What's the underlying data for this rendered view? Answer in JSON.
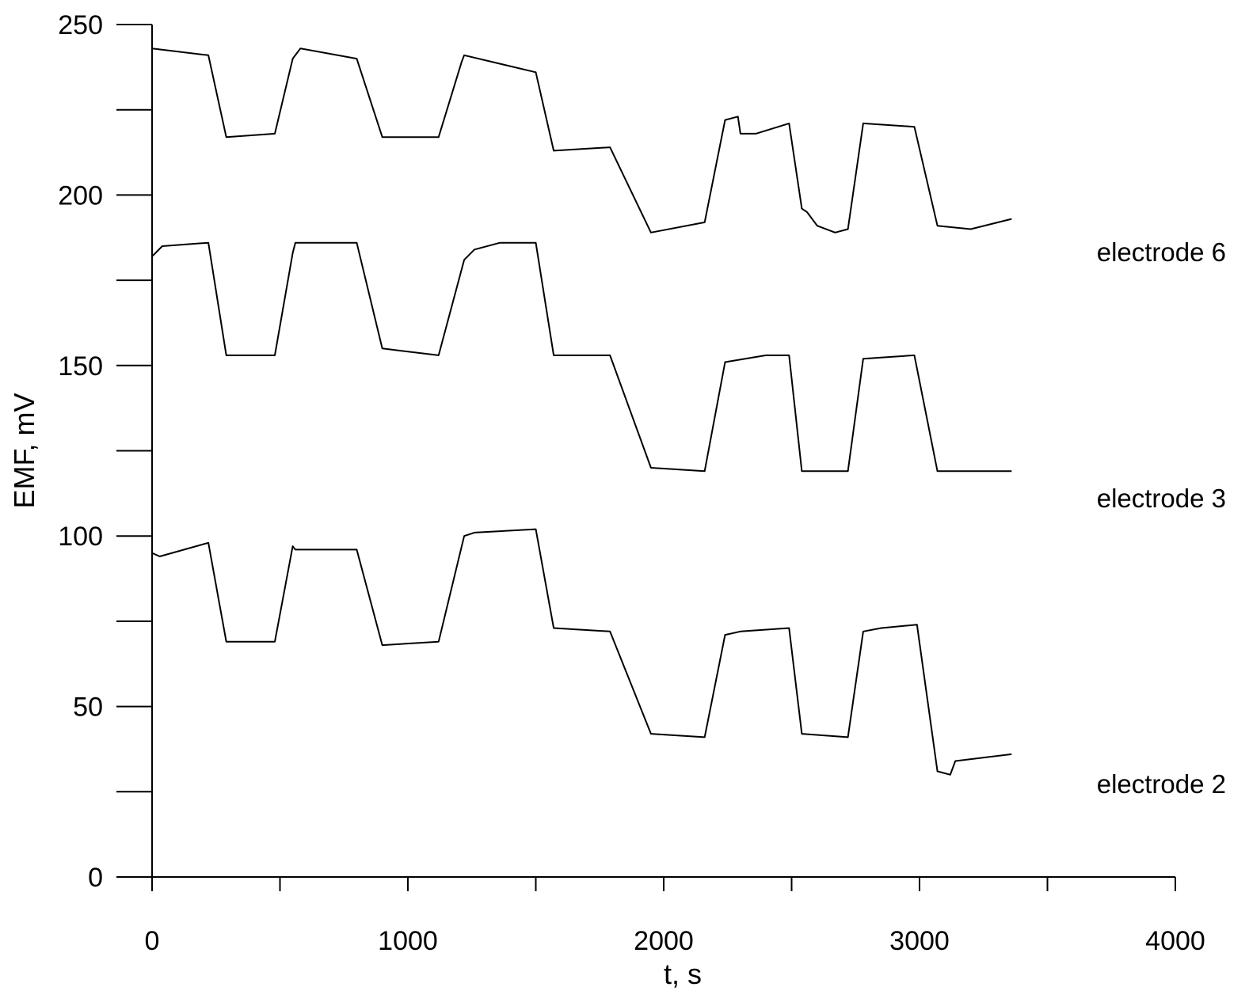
{
  "chart_data": {
    "type": "line",
    "title": "",
    "xlabel": "t, s",
    "ylabel": "EMF, mV",
    "xlim": [
      0,
      4000
    ],
    "ylim": [
      0,
      250
    ],
    "x_ticks_major": [
      0,
      1000,
      2000,
      3000,
      4000
    ],
    "x_ticks_minor": [
      500,
      1500,
      2500,
      3500
    ],
    "y_ticks_major": [
      0,
      50,
      100,
      150,
      200,
      250
    ],
    "y_ticks_minor": [
      25,
      75,
      125,
      175,
      225
    ],
    "x_tick_labels": [
      "0",
      "1000",
      "2000",
      "3000",
      "4000"
    ],
    "y_tick_labels": [
      "0",
      "50",
      "100",
      "150",
      "200",
      "250"
    ],
    "grid": false,
    "legend": "none",
    "series": [
      {
        "name": "electrode 6",
        "x": [
          0,
          220,
          290,
          480,
          550,
          580,
          800,
          900,
          1120,
          1210,
          1220,
          1500,
          1570,
          1790,
          1950,
          2160,
          2240,
          2290,
          2300,
          2360,
          2490,
          2540,
          2560,
          2600,
          2670,
          2720,
          2780,
          2980,
          3070,
          3200,
          3360
        ],
        "y": [
          243,
          241,
          217,
          218,
          240,
          243,
          240,
          217,
          217,
          239,
          241,
          236,
          213,
          214,
          189,
          192,
          222,
          223,
          218,
          218,
          221,
          196,
          195,
          191,
          189,
          190,
          221,
          220,
          191,
          190,
          193
        ]
      },
      {
        "name": "electrode 3",
        "x": [
          0,
          40,
          220,
          290,
          480,
          550,
          560,
          800,
          900,
          1120,
          1220,
          1260,
          1360,
          1500,
          1570,
          1790,
          1950,
          2160,
          2240,
          2400,
          2490,
          2540,
          2720,
          2780,
          2980,
          3070,
          3360
        ],
        "y": [
          182,
          185,
          186,
          153,
          153,
          183,
          186,
          186,
          155,
          153,
          181,
          184,
          186,
          186,
          153,
          153,
          120,
          119,
          151,
          153,
          153,
          119,
          119,
          152,
          153,
          119,
          119
        ]
      },
      {
        "name": "electrode 2",
        "x": [
          0,
          30,
          220,
          290,
          480,
          550,
          560,
          800,
          900,
          1120,
          1220,
          1260,
          1500,
          1570,
          1790,
          1950,
          2160,
          2240,
          2300,
          2490,
          2540,
          2720,
          2780,
          2850,
          2990,
          3070,
          3120,
          3140,
          3360
        ],
        "y": [
          95,
          94,
          98,
          69,
          69,
          97,
          96,
          96,
          68,
          69,
          100,
          101,
          102,
          73,
          72,
          42,
          41,
          71,
          72,
          73,
          42,
          41,
          72,
          73,
          74,
          31,
          30,
          34,
          36
        ]
      }
    ]
  }
}
